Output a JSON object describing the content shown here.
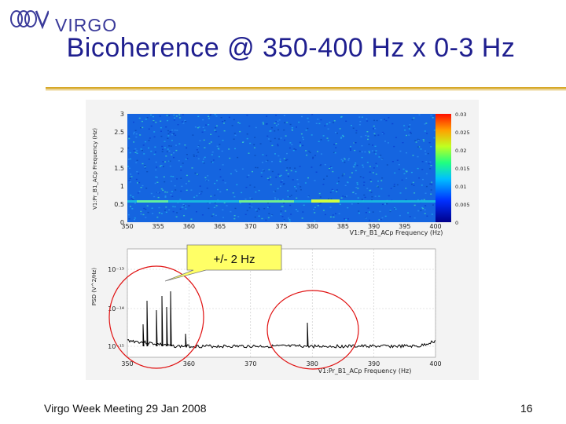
{
  "header": {
    "logo_text": "VIRGO",
    "title": "Bicoherence @ 350-400 Hz x 0-3 Hz"
  },
  "spectrogram": {
    "y_ticks": [
      "3",
      "2.5",
      "2",
      "1.5",
      "1",
      "0.5",
      "0"
    ],
    "x_ticks": [
      "350",
      "355",
      "360",
      "365",
      "370",
      "375",
      "380",
      "385",
      "390",
      "395",
      "400"
    ],
    "y_label": "V1:Pr_B1_ACp Frequency (Hz)",
    "x_label": "V1:Pr_B1_ACp Frequency (Hz)",
    "colorbar_ticks": [
      "0.03",
      "0.025",
      "0.02",
      "0.015",
      "0.01",
      "0.005",
      "0"
    ]
  },
  "psd": {
    "y_label": "PSD (V^2/Hz)",
    "y_ticks": [
      "10⁻¹³",
      "10⁻¹⁴",
      "10⁻¹⁵"
    ],
    "x_ticks": [
      "350",
      "360",
      "370",
      "380",
      "390",
      "400"
    ],
    "x_label": "V1:Pr_B1_ACp Frequency (Hz)"
  },
  "callout": {
    "label": "+/- 2 Hz"
  },
  "footer": {
    "left_text": "Virgo Week Meeting 29 Jan 2008",
    "page_number": "16"
  },
  "colors": {
    "title": "#1f1f8f",
    "rule": "#d4a21a",
    "circle": "#e01010"
  }
}
